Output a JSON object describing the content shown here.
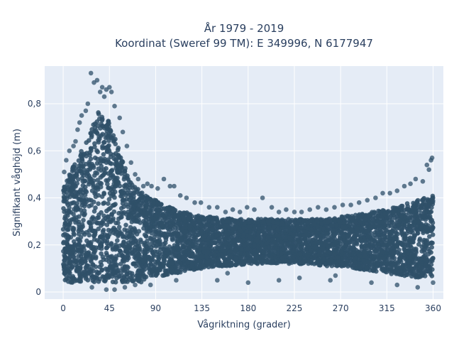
{
  "chart_data": {
    "type": "scatter",
    "title": "År 1979 - 2019",
    "subtitle": "Koordinat (Sweref 99 TM): E 349996, N 6177947",
    "xlabel": "Vågriktning (grader)",
    "ylabel": "Signifikant våghöjd (m)",
    "xlim": [
      -18,
      370
    ],
    "ylim": [
      -0.03,
      0.96
    ],
    "xticks": [
      0,
      45,
      90,
      135,
      180,
      225,
      270,
      315,
      360
    ],
    "xtick_labels": [
      "0",
      "45",
      "90",
      "135",
      "180",
      "225",
      "270",
      "315",
      "360"
    ],
    "yticks": [
      0,
      0.2,
      0.4,
      0.6,
      0.8
    ],
    "ytick_labels": [
      "0",
      "0,2",
      "0,4",
      "0,6",
      "0,8"
    ],
    "grid": true,
    "plot_background": "#e5ecf6",
    "marker_color": "#2f5069",
    "envelope": {
      "direction": [
        0,
        5,
        10,
        15,
        20,
        25,
        30,
        35,
        40,
        45,
        50,
        55,
        60,
        65,
        70,
        75,
        80,
        90,
        100,
        110,
        120,
        135,
        150,
        165,
        180,
        195,
        210,
        225,
        240,
        255,
        270,
        285,
        300,
        315,
        330,
        345,
        360
      ],
      "upper": [
        0.44,
        0.5,
        0.54,
        0.58,
        0.62,
        0.66,
        0.72,
        0.78,
        0.76,
        0.72,
        0.66,
        0.6,
        0.53,
        0.48,
        0.45,
        0.43,
        0.41,
        0.39,
        0.37,
        0.35,
        0.34,
        0.32,
        0.32,
        0.31,
        0.31,
        0.31,
        0.31,
        0.31,
        0.31,
        0.31,
        0.32,
        0.33,
        0.34,
        0.35,
        0.37,
        0.39,
        0.41
      ],
      "lower": [
        0.05,
        0.04,
        0.04,
        0.04,
        0.04,
        0.04,
        0.04,
        0.04,
        0.04,
        0.04,
        0.04,
        0.04,
        0.04,
        0.04,
        0.04,
        0.04,
        0.05,
        0.06,
        0.07,
        0.08,
        0.09,
        0.1,
        0.11,
        0.11,
        0.12,
        0.12,
        0.12,
        0.12,
        0.12,
        0.11,
        0.11,
        0.1,
        0.09,
        0.08,
        0.07,
        0.06,
        0.06
      ]
    },
    "outliers": [
      {
        "x": 27,
        "y": 0.93
      },
      {
        "x": 30,
        "y": 0.89
      },
      {
        "x": 33,
        "y": 0.9
      },
      {
        "x": 36,
        "y": 0.85
      },
      {
        "x": 38,
        "y": 0.87
      },
      {
        "x": 42,
        "y": 0.86
      },
      {
        "x": 45,
        "y": 0.87
      },
      {
        "x": 47,
        "y": 0.85
      },
      {
        "x": 40,
        "y": 0.83
      },
      {
        "x": 24,
        "y": 0.8
      },
      {
        "x": 22,
        "y": 0.77
      },
      {
        "x": 18,
        "y": 0.75
      },
      {
        "x": 16,
        "y": 0.72
      },
      {
        "x": 14,
        "y": 0.69
      },
      {
        "x": 12,
        "y": 0.64
      },
      {
        "x": 10,
        "y": 0.62
      },
      {
        "x": 6,
        "y": 0.6
      },
      {
        "x": 3,
        "y": 0.56
      },
      {
        "x": 1,
        "y": 0.51
      },
      {
        "x": 50,
        "y": 0.79
      },
      {
        "x": 55,
        "y": 0.74
      },
      {
        "x": 58,
        "y": 0.68
      },
      {
        "x": 62,
        "y": 0.62
      },
      {
        "x": 66,
        "y": 0.55
      },
      {
        "x": 70,
        "y": 0.5
      },
      {
        "x": 73,
        "y": 0.48
      },
      {
        "x": 78,
        "y": 0.45
      },
      {
        "x": 82,
        "y": 0.46
      },
      {
        "x": 86,
        "y": 0.45
      },
      {
        "x": 92,
        "y": 0.44
      },
      {
        "x": 98,
        "y": 0.48
      },
      {
        "x": 104,
        "y": 0.45
      },
      {
        "x": 108,
        "y": 0.45
      },
      {
        "x": 114,
        "y": 0.41
      },
      {
        "x": 120,
        "y": 0.4
      },
      {
        "x": 128,
        "y": 0.38
      },
      {
        "x": 134,
        "y": 0.38
      },
      {
        "x": 142,
        "y": 0.36
      },
      {
        "x": 150,
        "y": 0.36
      },
      {
        "x": 158,
        "y": 0.34
      },
      {
        "x": 165,
        "y": 0.35
      },
      {
        "x": 172,
        "y": 0.34
      },
      {
        "x": 179,
        "y": 0.36
      },
      {
        "x": 186,
        "y": 0.35
      },
      {
        "x": 194,
        "y": 0.4
      },
      {
        "x": 203,
        "y": 0.36
      },
      {
        "x": 210,
        "y": 0.34
      },
      {
        "x": 217,
        "y": 0.35
      },
      {
        "x": 225,
        "y": 0.34
      },
      {
        "x": 232,
        "y": 0.34
      },
      {
        "x": 240,
        "y": 0.35
      },
      {
        "x": 248,
        "y": 0.36
      },
      {
        "x": 256,
        "y": 0.35
      },
      {
        "x": 264,
        "y": 0.36
      },
      {
        "x": 272,
        "y": 0.37
      },
      {
        "x": 280,
        "y": 0.37
      },
      {
        "x": 288,
        "y": 0.38
      },
      {
        "x": 296,
        "y": 0.39
      },
      {
        "x": 304,
        "y": 0.4
      },
      {
        "x": 311,
        "y": 0.42
      },
      {
        "x": 318,
        "y": 0.42
      },
      {
        "x": 325,
        "y": 0.43
      },
      {
        "x": 332,
        "y": 0.45
      },
      {
        "x": 338,
        "y": 0.46
      },
      {
        "x": 343,
        "y": 0.48
      },
      {
        "x": 350,
        "y": 0.47
      },
      {
        "x": 354,
        "y": 0.54
      },
      {
        "x": 356,
        "y": 0.52
      },
      {
        "x": 358,
        "y": 0.56
      },
      {
        "x": 359,
        "y": 0.57
      },
      {
        "x": 42,
        "y": 0.01
      },
      {
        "x": 50,
        "y": 0.01
      },
      {
        "x": 28,
        "y": 0.02
      },
      {
        "x": 60,
        "y": 0.02
      },
      {
        "x": 70,
        "y": 0.03
      },
      {
        "x": 85,
        "y": 0.03
      },
      {
        "x": 110,
        "y": 0.05
      },
      {
        "x": 150,
        "y": 0.05
      },
      {
        "x": 180,
        "y": 0.04
      },
      {
        "x": 210,
        "y": 0.05
      },
      {
        "x": 230,
        "y": 0.06
      },
      {
        "x": 260,
        "y": 0.05
      },
      {
        "x": 300,
        "y": 0.04
      },
      {
        "x": 325,
        "y": 0.03
      },
      {
        "x": 345,
        "y": 0.02
      },
      {
        "x": 360,
        "y": 0.04
      },
      {
        "x": 160,
        "y": 0.08
      },
      {
        "x": 265,
        "y": 0.07
      }
    ]
  }
}
